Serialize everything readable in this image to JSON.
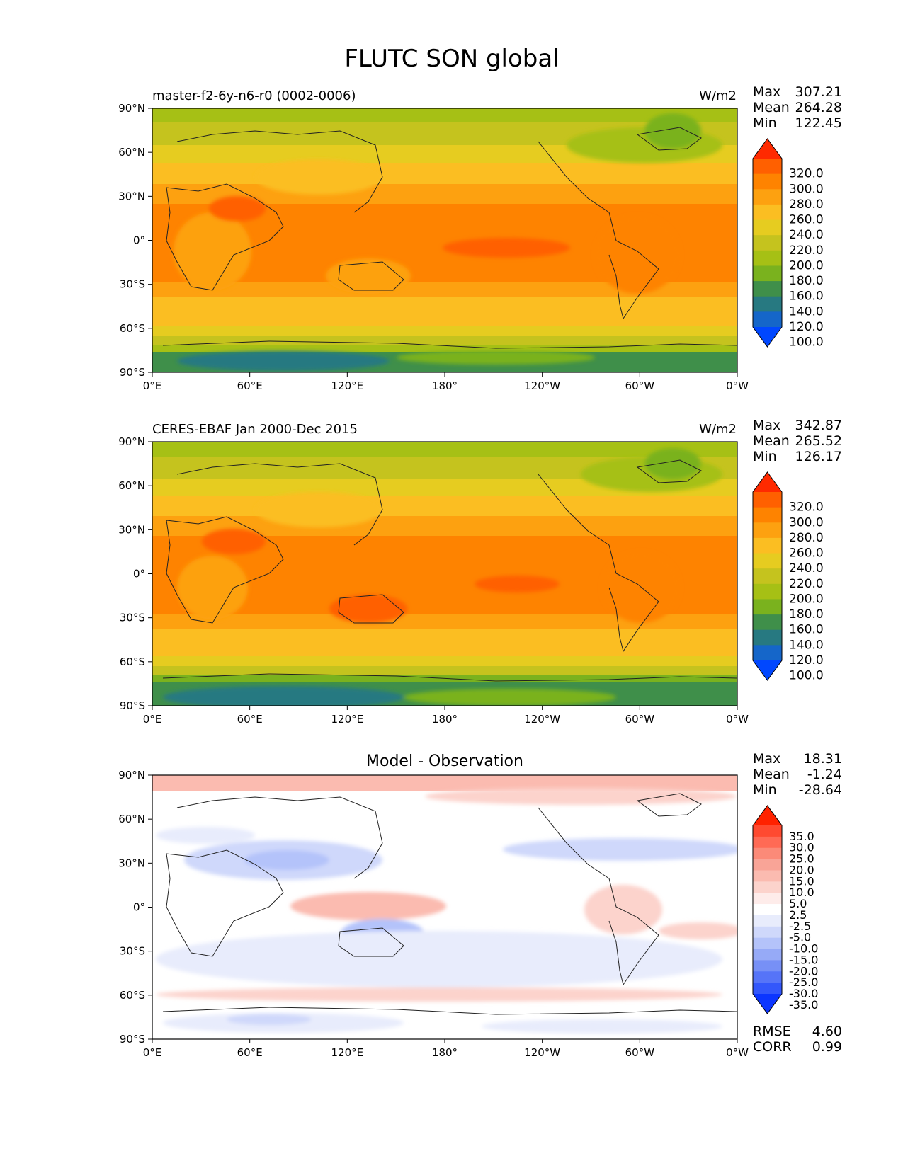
{
  "title": "FLUTC SON global",
  "x_ticks": [
    "0°E",
    "60°E",
    "120°E",
    "180°",
    "120°W",
    "60°W",
    "0°W"
  ],
  "y_ticks": [
    "90°N",
    "60°N",
    "30°N",
    "0°",
    "30°S",
    "60°S",
    "90°S"
  ],
  "panels": [
    {
      "id": "model",
      "left_title": "master-f2-6y-n6-r0 (0002-0006)",
      "center_title": "",
      "units": "W/m2",
      "stats": [
        [
          "Max",
          "307.21"
        ],
        [
          "Mean",
          "264.28"
        ],
        [
          "Min",
          "122.45"
        ]
      ],
      "colorbar": {
        "labels": [
          "320.0",
          "300.0",
          "280.0",
          "260.0",
          "240.0",
          "220.0",
          "200.0",
          "180.0",
          "160.0",
          "140.0",
          "120.0",
          "100.0"
        ],
        "colors": [
          "#ff2a00",
          "#ff6000",
          "#fe8300",
          "#fda110",
          "#fbbe22",
          "#e6cc20",
          "#c5c31e",
          "#a6c015",
          "#7ab21e",
          "#3f8f4a",
          "#277981",
          "#1566c9",
          "#0047ff"
        ]
      },
      "extra_stats": []
    },
    {
      "id": "obs",
      "left_title": "CERES-EBAF Jan 2000-Dec 2015",
      "center_title": "",
      "units": "W/m2",
      "stats": [
        [
          "Max",
          "342.87"
        ],
        [
          "Mean",
          "265.52"
        ],
        [
          "Min",
          "126.17"
        ]
      ],
      "colorbar": {
        "labels": [
          "320.0",
          "300.0",
          "280.0",
          "260.0",
          "240.0",
          "220.0",
          "200.0",
          "180.0",
          "160.0",
          "140.0",
          "120.0",
          "100.0"
        ],
        "colors": [
          "#ff2a00",
          "#ff6000",
          "#fe8300",
          "#fda110",
          "#fbbe22",
          "#e6cc20",
          "#c5c31e",
          "#a6c015",
          "#7ab21e",
          "#3f8f4a",
          "#277981",
          "#1566c9",
          "#0047ff"
        ]
      },
      "extra_stats": []
    },
    {
      "id": "diff",
      "left_title": "",
      "center_title": "Model - Observation",
      "units": "",
      "stats": [
        [
          "Max",
          "18.31"
        ],
        [
          "Mean",
          "-1.24"
        ],
        [
          "Min",
          "-28.64"
        ]
      ],
      "colorbar": {
        "labels": [
          "35.0",
          "30.0",
          "25.0",
          "20.0",
          "15.0",
          "10.0",
          "5.0",
          "2.5",
          "-2.5",
          "-5.0",
          "-10.0",
          "-15.0",
          "-20.0",
          "-25.0",
          "-30.0",
          "-35.0"
        ],
        "colors": [
          "#ff2200",
          "#ff4a30",
          "#ff6a55",
          "#fb8a78",
          "#f9a497",
          "#fbbbb0",
          "#fcd3cc",
          "#feecea",
          "#ffffff",
          "#e8ecfc",
          "#cfd8fb",
          "#b4c3fa",
          "#96aaf7",
          "#7790f6",
          "#5674f8",
          "#3357fb",
          "#0b35ff"
        ]
      },
      "extra_stats": [
        [
          "RMSE",
          "4.60"
        ],
        [
          "CORR",
          "0.99"
        ]
      ]
    }
  ]
}
